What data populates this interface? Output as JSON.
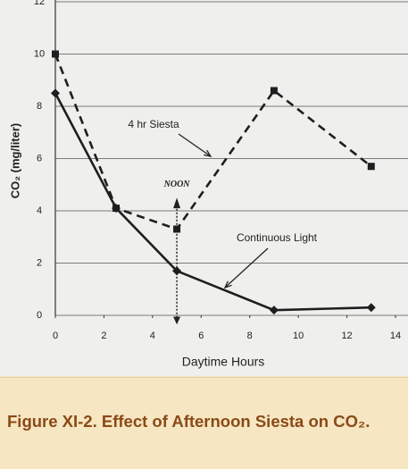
{
  "chart_data": {
    "type": "line",
    "x_label": "Daytime Hours",
    "y_label": "CO₂ (mg/liter)",
    "annotation": "NOON",
    "x": [
      0,
      2.5,
      5,
      9,
      13
    ],
    "series": [
      {
        "name": "Continuous Light",
        "color": "#1e1e1e",
        "dash": false,
        "marker": "diamond",
        "values": [
          8.5,
          4.1,
          1.7,
          0.2,
          0.3
        ]
      },
      {
        "name": "4 hr Siesta",
        "color": "#1e1e1e",
        "dash": true,
        "marker": "square",
        "values": [
          10,
          4.1,
          3.3,
          8.6,
          5.7
        ]
      }
    ],
    "xlim": [
      0,
      14
    ],
    "xticks": [
      0,
      2,
      4,
      6,
      8,
      10,
      12,
      14
    ],
    "ylim": [
      0,
      12
    ],
    "yticks": [
      0,
      2,
      4,
      6,
      8,
      10,
      12
    ],
    "grid": true,
    "caption": "Figure XI-2. Effect of Afternoon Siesta on CO₂."
  }
}
